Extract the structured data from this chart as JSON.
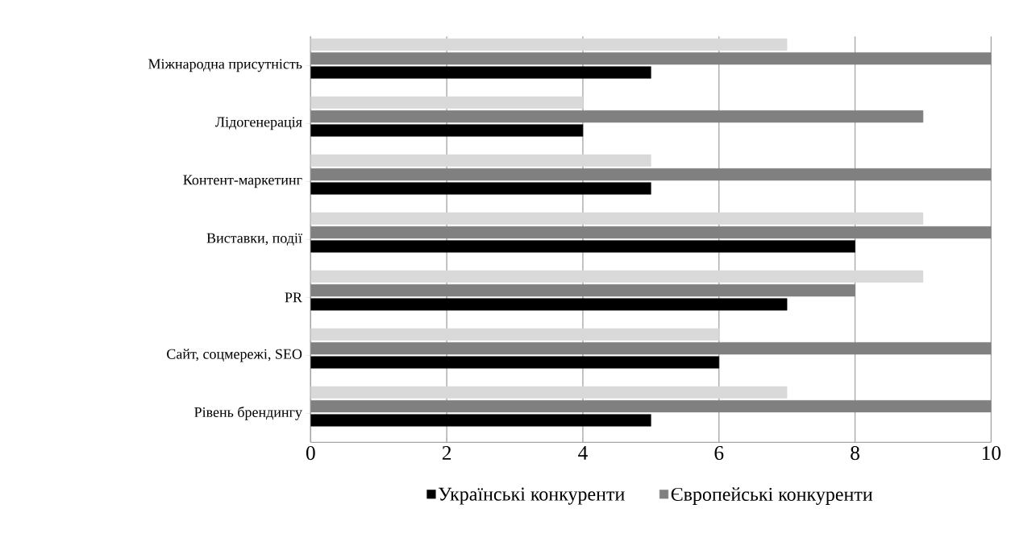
{
  "chart_data": {
    "type": "bar",
    "orientation": "horizontal",
    "categories": [
      "Міжнародна присутність",
      "Лідогенерація",
      "Контент-маркетинг",
      "Виставки, події",
      "PR",
      "Сайт, соцмережі, SEO",
      "Рівень брендингу"
    ],
    "series": [
      {
        "name": "Українські конкуренти",
        "color": "#000000",
        "values": [
          5,
          4,
          5,
          8,
          7,
          6,
          5
        ]
      },
      {
        "name": "Європейські конкуренти",
        "color": "#808080",
        "values": [
          10,
          9,
          10,
          10,
          8,
          10,
          10
        ]
      },
      {
        "color": "#d9d9d9",
        "values": [
          7,
          4,
          5,
          9,
          9,
          6,
          7
        ]
      }
    ],
    "xlim": [
      0,
      10
    ],
    "xticks": [
      0,
      2,
      4,
      6,
      8,
      10
    ],
    "grid": "x",
    "legend": "bottom"
  }
}
